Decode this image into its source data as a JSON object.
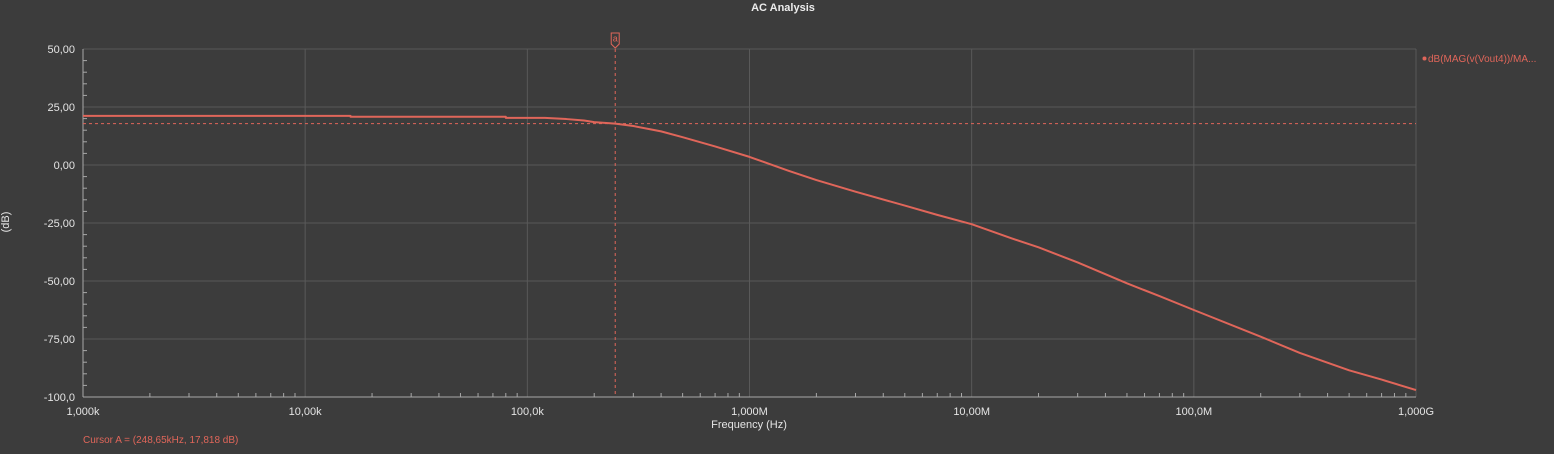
{
  "chart_data": {
    "type": "line",
    "title": "AC Analysis",
    "xlabel": "Frequency (Hz)",
    "ylabel": "(dB)",
    "x_scale": "log",
    "xlim": [
      1000,
      1000000000
    ],
    "ylim": [
      -100,
      50
    ],
    "grid": true,
    "x_ticks": [
      {
        "value": 1000,
        "label": "1,000k"
      },
      {
        "value": 10000,
        "label": "10,00k"
      },
      {
        "value": 100000,
        "label": "100,0k"
      },
      {
        "value": 1000000,
        "label": "1,000M"
      },
      {
        "value": 10000000,
        "label": "10,00M"
      },
      {
        "value": 100000000,
        "label": "100,0M"
      },
      {
        "value": 1000000000,
        "label": "1,000G"
      }
    ],
    "y_ticks": [
      {
        "value": 50,
        "label": "50,00"
      },
      {
        "value": 25,
        "label": "25,00"
      },
      {
        "value": 0,
        "label": "0,00"
      },
      {
        "value": -25,
        "label": "-25,00"
      },
      {
        "value": -50,
        "label": "-50,00"
      },
      {
        "value": -75,
        "label": "-75,00"
      },
      {
        "value": -100,
        "label": "-100,0"
      }
    ],
    "series": [
      {
        "name": "dB(MAG(v(Vout4))/MA...",
        "color": "#e0665a",
        "x": [
          1000,
          2000,
          5000,
          10000,
          16000,
          16001,
          30000,
          50000,
          80000,
          80001,
          120000,
          150000,
          180000,
          200000,
          248650,
          300000,
          400000,
          500000,
          700000,
          1000000,
          1500000,
          2000000,
          3000000,
          5000000,
          7000000,
          10000000,
          15000000,
          20000000,
          30000000,
          50000000,
          70000000,
          100000000,
          200000000,
          300000000,
          500000000,
          700000000,
          1000000000
        ],
        "y": [
          21.2,
          21.2,
          21.2,
          21.2,
          21.2,
          20.8,
          20.8,
          20.8,
          20.8,
          20.3,
          20.3,
          19.8,
          19.2,
          18.5,
          17.818,
          16.8,
          14.5,
          12.0,
          8.0,
          3.5,
          -2.5,
          -6.5,
          -11.5,
          -17.5,
          -21.5,
          -25.5,
          -31.5,
          -35.5,
          -42.0,
          -51.0,
          -56.5,
          -62.5,
          -74.0,
          -81.0,
          -88.5,
          -92.5,
          -97.0
        ]
      }
    ],
    "legend_position": "top-right",
    "cursor": {
      "name": "a",
      "x": 248650,
      "y": 17.818,
      "readout": "Cursor A = (248,65kHz, 17,818 dB)"
    }
  },
  "colors": {
    "background": "#3c3c3c",
    "grid": "#595959",
    "axis": "#a8a8a8",
    "text": "#e4e4e4",
    "trace": "#e0665a"
  }
}
